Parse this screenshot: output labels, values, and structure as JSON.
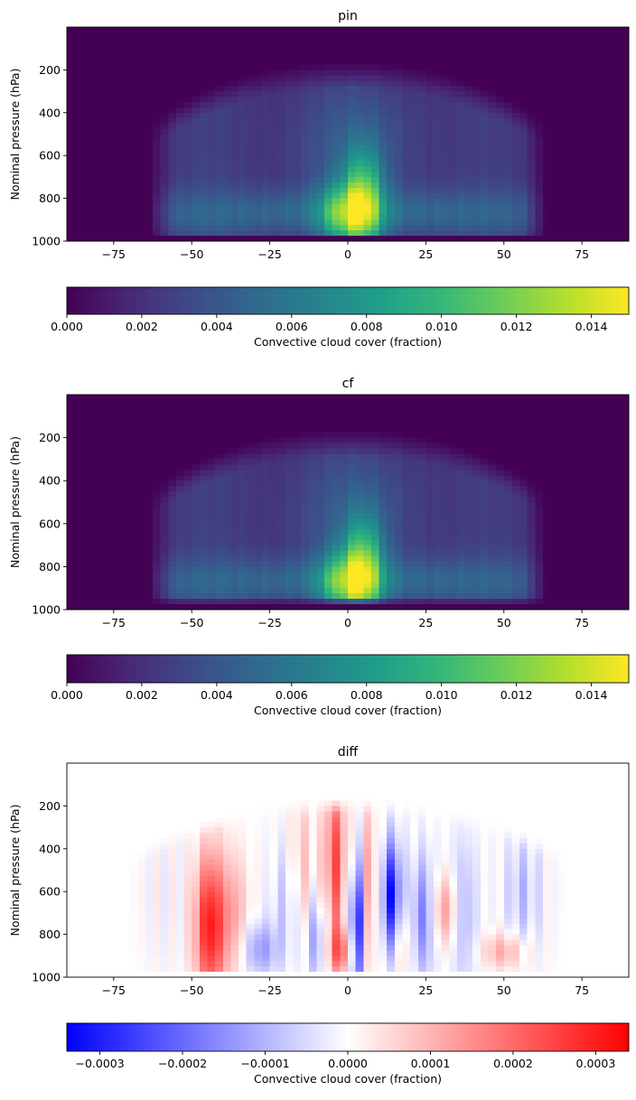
{
  "chart_data": [
    {
      "type": "heatmap",
      "title": "pin",
      "xlabel": "",
      "ylabel": "Nominal pressure (hPa)",
      "x_ticks": [
        -75,
        -50,
        -25,
        0,
        25,
        50,
        75
      ],
      "x_tick_labels": [
        "−75",
        "−50",
        "−25",
        "0",
        "25",
        "50",
        "75"
      ],
      "y_ticks": [
        200,
        400,
        600,
        800,
        1000
      ],
      "xlim": [
        -90,
        90
      ],
      "ylim": [
        1000,
        0
      ],
      "colormap": "viridis",
      "colorbar": {
        "label": "Convective cloud cover (fraction)",
        "range": [
          0,
          0.015
        ],
        "ticks": [
          0,
          0.002,
          0.004,
          0.006,
          0.008,
          0.01,
          0.012,
          0.014
        ],
        "tick_labels": [
          "0.000",
          "0.002",
          "0.004",
          "0.006",
          "0.008",
          "0.010",
          "0.012",
          "0.014"
        ],
        "orientation": "horizontal"
      },
      "z_features": {
        "max_value": 0.0145,
        "max_location": {
          "lat": 5,
          "pressure": 850
        },
        "note_secondary_peak": {
          "lat": -3,
          "pressure": 880
        }
      }
    },
    {
      "type": "heatmap",
      "title": "cf",
      "xlabel": "",
      "ylabel": "Nominal pressure (hPa)",
      "x_ticks": [
        -75,
        -50,
        -25,
        0,
        25,
        50,
        75
      ],
      "x_tick_labels": [
        "−75",
        "−50",
        "−25",
        "0",
        "25",
        "50",
        "75"
      ],
      "y_ticks": [
        200,
        400,
        600,
        800,
        1000
      ],
      "xlim": [
        -90,
        90
      ],
      "ylim": [
        1000,
        0
      ],
      "colormap": "viridis",
      "colorbar": {
        "label": "Convective cloud cover (fraction)",
        "range": [
          0,
          0.015
        ],
        "ticks": [
          0,
          0.002,
          0.004,
          0.006,
          0.008,
          0.01,
          0.012,
          0.014
        ],
        "tick_labels": [
          "0.000",
          "0.002",
          "0.004",
          "0.006",
          "0.008",
          "0.010",
          "0.012",
          "0.014"
        ],
        "orientation": "horizontal"
      },
      "z_features": {
        "max_value": 0.014,
        "max_location": {
          "lat": 5,
          "pressure": 850
        }
      }
    },
    {
      "type": "heatmap",
      "title": "diff",
      "xlabel": "",
      "ylabel": "Nominal pressure (hPa)",
      "x_ticks": [
        -75,
        -50,
        -25,
        0,
        25,
        50,
        75
      ],
      "x_tick_labels": [
        "−75",
        "−50",
        "−25",
        "0",
        "25",
        "50",
        "75"
      ],
      "y_ticks": [
        200,
        400,
        600,
        800,
        1000
      ],
      "xlim": [
        -90,
        90
      ],
      "ylim": [
        1000,
        0
      ],
      "colormap": "bwr",
      "colorbar": {
        "label": "Convective cloud cover (fraction)",
        "range": [
          -0.00034,
          0.00034
        ],
        "ticks": [
          -0.0003,
          -0.0002,
          -0.0001,
          0,
          0.0001,
          0.0002,
          0.0003
        ],
        "tick_labels": [
          "−0.0003",
          "−0.0002",
          "−0.0001",
          "0.0000",
          "0.0001",
          "0.0002",
          "0.0003"
        ],
        "orientation": "horizontal"
      },
      "z_features": {
        "positive_bands_lat": [
          -43,
          -4,
          31,
          48
        ],
        "negative_bands_lat": [
          -28,
          -10,
          3,
          14,
          24
        ],
        "strongest_positive": {
          "lat": -44,
          "pressure": 850,
          "value": 0.0003
        },
        "strongest_negative": {
          "lat": 14,
          "pressure": 650,
          "value": -0.0003
        }
      }
    }
  ]
}
